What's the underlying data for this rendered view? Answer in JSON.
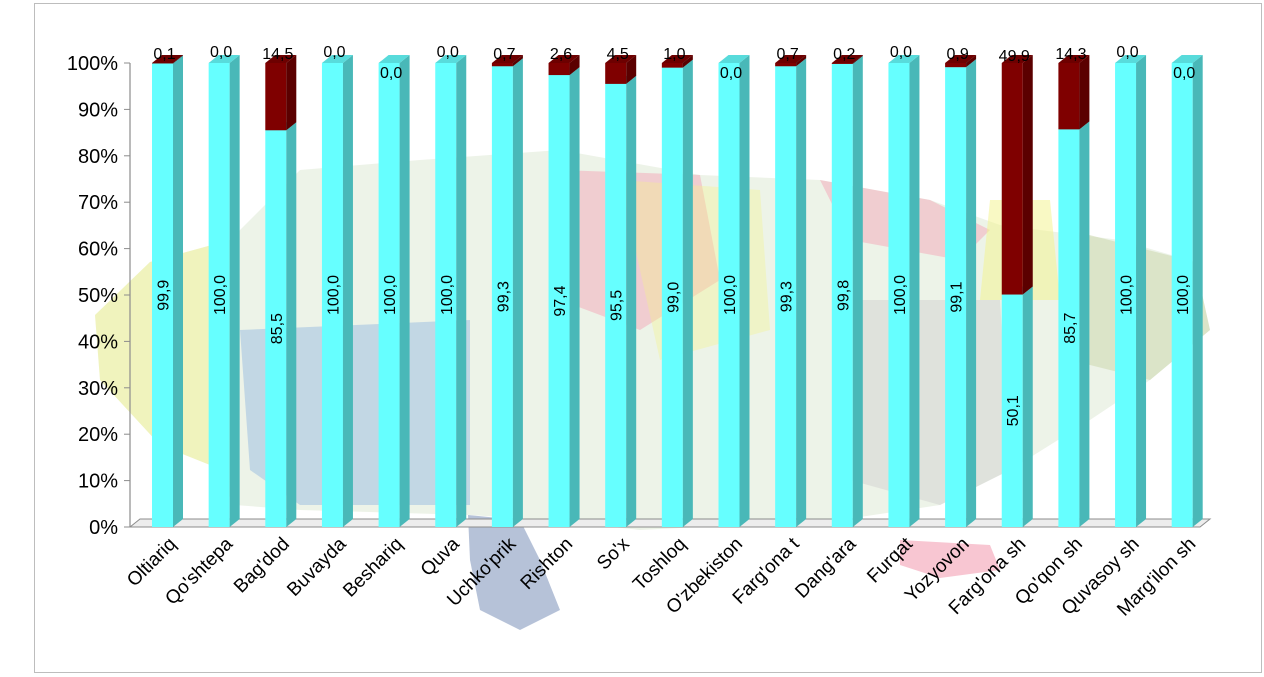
{
  "chart_data": {
    "type": "bar",
    "stacked": true,
    "percent": true,
    "three_d": true,
    "ylim": [
      0,
      100
    ],
    "y_ticks": [
      "0%",
      "10%",
      "20%",
      "30%",
      "40%",
      "50%",
      "60%",
      "70%",
      "80%",
      "90%",
      "100%"
    ],
    "grid": false,
    "legend": "none",
    "background": "map of Farg'ona region (faded)",
    "categories": [
      "Oltiariq",
      "Qo'shtepa",
      "Bag'dod",
      "Buvayda",
      "Beshariq",
      "Quva",
      "Uchko'prik",
      "Rishton",
      "So'x",
      "Toshloq",
      "O'zbekiston",
      "Farg'ona t",
      "Dang'ara",
      "Furqat",
      "Yozyovon",
      "Farg'ona sh",
      "Qo'qon sh",
      "Quvasoy sh",
      "Marg'ilon sh"
    ],
    "series": [
      {
        "color": "#66FFFF",
        "values": [
          99.9,
          100.0,
          85.5,
          100.0,
          100.0,
          100.0,
          99.3,
          97.4,
          95.5,
          99.0,
          100.0,
          99.3,
          99.8,
          100.0,
          99.1,
          50.1,
          85.7,
          100.0,
          100.0
        ],
        "labels": [
          "99,9",
          "100,0",
          "85,5",
          "100,0",
          "100,0",
          "100,0",
          "99,3",
          "97,4",
          "95,5",
          "99,0",
          "100,0",
          "99,3",
          "99,8",
          "100,0",
          "99,1",
          "50,1",
          "85,7",
          "100,0",
          "100,0"
        ]
      },
      {
        "color": "#7F0000",
        "values": [
          0.1,
          0.0,
          14.5,
          0.0,
          0.0,
          0.0,
          0.7,
          2.6,
          4.5,
          1.0,
          0.0,
          0.7,
          0.2,
          0.0,
          0.9,
          49.9,
          14.3,
          0.0,
          0.0
        ],
        "labels": [
          "0,1",
          "0,0",
          "14,5",
          "0,0",
          "0,0",
          "0,0",
          "0,7",
          "2,6",
          "4,5",
          "1,0",
          "0,0",
          "0,7",
          "0,2",
          "0,0",
          "0,9",
          "49,9",
          "14,3",
          "0,0",
          "0,0"
        ]
      }
    ]
  }
}
